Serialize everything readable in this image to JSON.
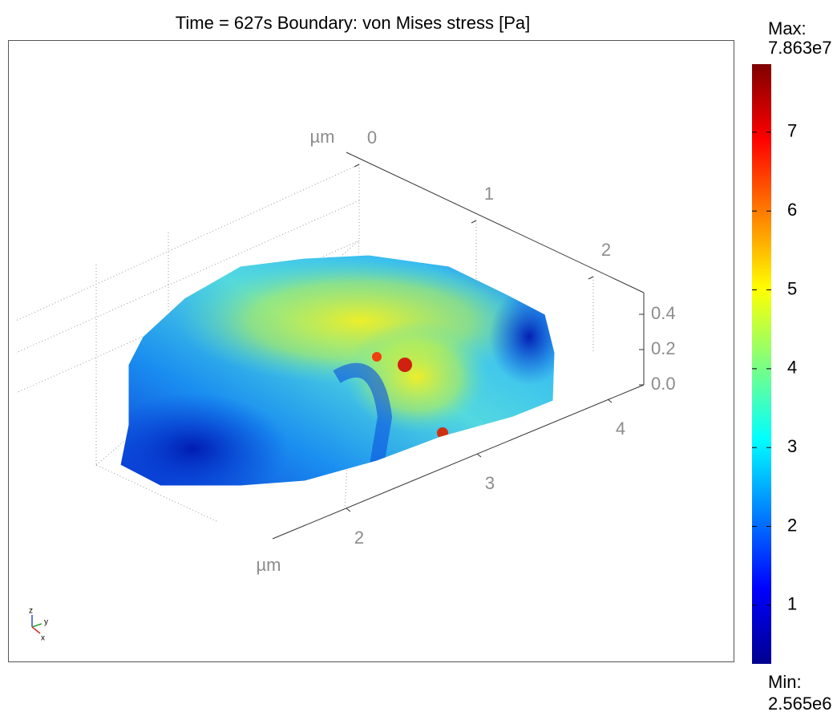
{
  "chart_data": {
    "type": "surface3d",
    "title": "Time = 627s  Boundary: von Mises stress [Pa]",
    "colorbar": {
      "max_label": "Max:",
      "max_text": "7.863e7",
      "min_label": "Min:",
      "min_text": "2.565e6",
      "ylim": [
        0.2565,
        7.863
      ],
      "yticks": [
        1,
        2,
        3,
        4,
        5,
        6,
        7
      ]
    },
    "axes": {
      "x": {
        "label": "µm",
        "ticks": [
          2,
          3,
          4
        ]
      },
      "y": {
        "label": "µm",
        "ticks": [
          0,
          1,
          2
        ]
      },
      "z": {
        "ticks": [
          {
            "value": 0,
            "label": "0.0"
          },
          {
            "value": 0.2,
            "label": "0.2"
          },
          {
            "value": 0.4,
            "label": "0.4"
          }
        ]
      }
    }
  }
}
